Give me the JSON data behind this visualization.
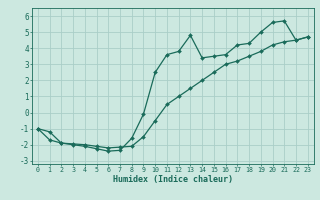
{
  "title": "",
  "xlabel": "Humidex (Indice chaleur)",
  "ylabel": "",
  "bg_color": "#cce8e0",
  "line_color": "#1a6b5a",
  "grid_color": "#aacec8",
  "xlim": [
    -0.5,
    23.5
  ],
  "ylim": [
    -3.2,
    6.5
  ],
  "xticks": [
    0,
    1,
    2,
    3,
    4,
    5,
    6,
    7,
    8,
    9,
    10,
    11,
    12,
    13,
    14,
    15,
    16,
    17,
    18,
    19,
    20,
    21,
    22,
    23
  ],
  "yticks": [
    -3,
    -2,
    -1,
    0,
    1,
    2,
    3,
    4,
    5,
    6
  ],
  "line1_x": [
    0,
    1,
    2,
    3,
    4,
    5,
    6,
    7,
    8,
    9,
    10,
    11,
    12,
    13,
    14,
    15,
    16,
    17,
    18,
    19,
    20,
    21,
    22,
    23
  ],
  "line1_y": [
    -1.0,
    -1.7,
    -1.9,
    -2.0,
    -2.1,
    -2.25,
    -2.4,
    -2.35,
    -1.6,
    -0.1,
    2.5,
    3.6,
    3.8,
    4.8,
    3.4,
    3.5,
    3.6,
    4.2,
    4.3,
    5.0,
    5.6,
    5.7,
    4.5,
    4.7
  ],
  "line2_x": [
    0,
    1,
    2,
    3,
    4,
    5,
    6,
    7,
    8,
    9,
    10,
    11,
    12,
    13,
    14,
    15,
    16,
    17,
    18,
    19,
    20,
    21,
    22,
    23
  ],
  "line2_y": [
    -1.0,
    -1.2,
    -1.9,
    -1.95,
    -2.0,
    -2.1,
    -2.2,
    -2.15,
    -2.1,
    -1.5,
    -0.5,
    0.5,
    1.0,
    1.5,
    2.0,
    2.5,
    3.0,
    3.2,
    3.5,
    3.8,
    4.2,
    4.4,
    4.5,
    4.7
  ],
  "xlabel_fontsize": 6.0,
  "ytick_fontsize": 5.5,
  "xtick_fontsize": 4.8
}
